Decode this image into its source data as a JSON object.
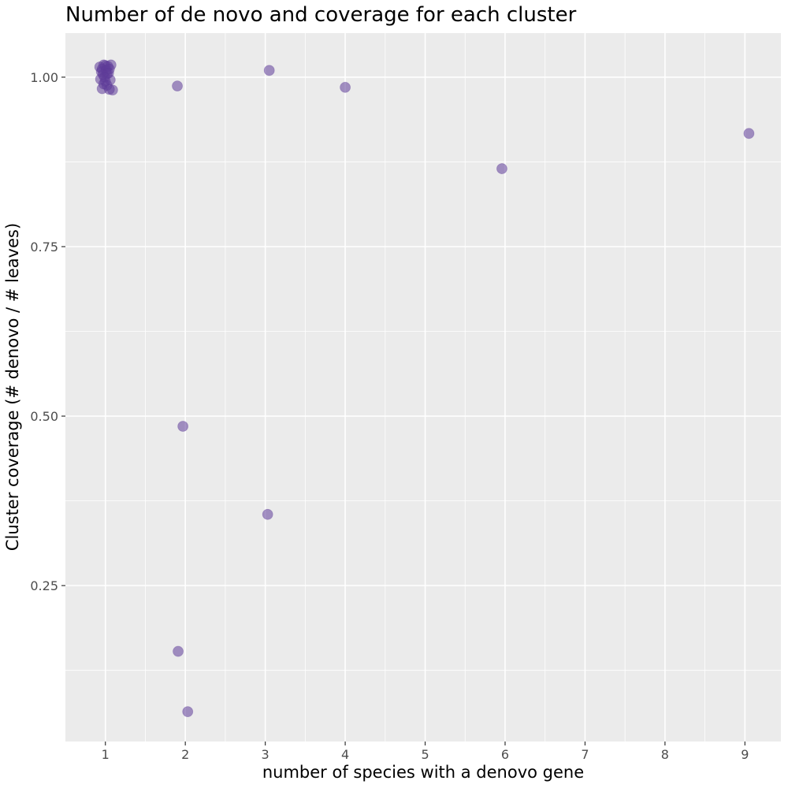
{
  "chart_data": {
    "type": "scatter",
    "title": "Number of de novo and coverage for each cluster",
    "xlabel": "number of species with a denovo gene",
    "ylabel": "Cluster coverage (# denovo / # leaves)",
    "xlim": [
      0.5,
      9.45
    ],
    "ylim": [
      0.02,
      1.065
    ],
    "x_ticks": [
      1,
      2,
      3,
      4,
      5,
      6,
      7,
      8,
      9
    ],
    "x_tick_labels": [
      "1",
      "2",
      "3",
      "4",
      "5",
      "6",
      "7",
      "8",
      "9"
    ],
    "y_ticks": [
      0.25,
      0.5,
      0.75,
      1.0
    ],
    "y_tick_labels": [
      "0.25",
      "0.50",
      "0.75",
      "1.00"
    ],
    "grid": true,
    "point_color": "#5e3c99",
    "panel_background": "#ebebeb",
    "points": [
      {
        "x": 0.93,
        "y": 1.015
      },
      {
        "x": 0.96,
        "y": 1.012
      },
      {
        "x": 0.98,
        "y": 1.018
      },
      {
        "x": 1.0,
        "y": 1.017
      },
      {
        "x": 1.03,
        "y": 1.016
      },
      {
        "x": 1.07,
        "y": 1.018
      },
      {
        "x": 0.95,
        "y": 1.008
      },
      {
        "x": 1.01,
        "y": 1.01
      },
      {
        "x": 1.05,
        "y": 1.012
      },
      {
        "x": 0.97,
        "y": 1.004
      },
      {
        "x": 1.02,
        "y": 1.005
      },
      {
        "x": 1.04,
        "y": 1.006
      },
      {
        "x": 0.99,
        "y": 1.0
      },
      {
        "x": 0.94,
        "y": 0.997
      },
      {
        "x": 1.0,
        "y": 0.994
      },
      {
        "x": 1.06,
        "y": 0.996
      },
      {
        "x": 0.98,
        "y": 0.99
      },
      {
        "x": 1.02,
        "y": 0.988
      },
      {
        "x": 0.96,
        "y": 0.983
      },
      {
        "x": 1.05,
        "y": 0.982
      },
      {
        "x": 1.09,
        "y": 0.981
      },
      {
        "x": 1.9,
        "y": 0.987
      },
      {
        "x": 3.05,
        "y": 1.01
      },
      {
        "x": 4.0,
        "y": 0.985
      },
      {
        "x": 5.96,
        "y": 0.865
      },
      {
        "x": 9.05,
        "y": 0.917
      },
      {
        "x": 1.97,
        "y": 0.485
      },
      {
        "x": 3.03,
        "y": 0.355
      },
      {
        "x": 1.91,
        "y": 0.153
      },
      {
        "x": 2.03,
        "y": 0.064
      }
    ]
  }
}
